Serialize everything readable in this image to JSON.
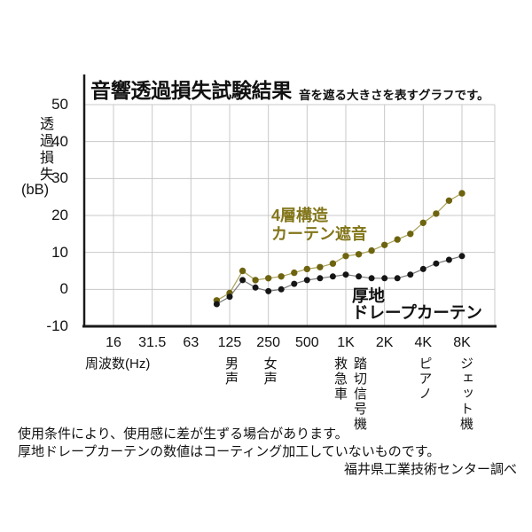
{
  "page": {
    "title": "音響透過損失試験結果",
    "subtitle": "音を遮る大きさを表すグラフです。",
    "notes": [
      "使用条件により、使用感に差が生ずる場合があります。",
      "厚地ドレープカーテンの数値はコーティング加工していないものです。"
    ],
    "source": "福井県工業技術センター調べ"
  },
  "chart_data": {
    "type": "line",
    "title": "音響透過損失試験結果",
    "subtitle": "音を遮る大きさを表すグラフです。",
    "grid": true,
    "legend_position": "inside",
    "x_axis": {
      "label": "周波数(Hz)",
      "scale": "log-octave",
      "ticks": [
        "16",
        "31.5",
        "63",
        "125",
        "250",
        "500",
        "1K",
        "2K",
        "4K",
        "8K"
      ]
    },
    "y_axis": {
      "label": "透過損失",
      "unit": "(bB)",
      "ticks": [
        50,
        40,
        30,
        20,
        10,
        0,
        -10
      ],
      "range": [
        -10,
        50
      ]
    },
    "bands": [
      "100",
      "125",
      "160",
      "200",
      "250",
      "315",
      "400",
      "500",
      "630",
      "800",
      "1K",
      "1.25K",
      "1.6K",
      "2K",
      "2.5K",
      "3.15K",
      "4K",
      "5K",
      "6.3K",
      "8K"
    ],
    "series": [
      {
        "name": "4層構造カーテン遮音",
        "label_lines": [
          "4層構造",
          "カーテン遮音"
        ],
        "dot_color": "#6e6410",
        "line_color": "#aaa158",
        "label_color": "#83761a",
        "values": [
          -3,
          -1,
          5,
          2.5,
          3,
          3.5,
          4.5,
          5.5,
          6,
          7,
          9,
          9.5,
          10.5,
          12,
          13.5,
          15,
          18,
          20.5,
          24,
          26
        ]
      },
      {
        "name": "厚地ドレープカーテン",
        "label_lines": [
          "厚地",
          "ドレープカーテン"
        ],
        "dot_color": "#151515",
        "line_color": "#787878",
        "label_color": "#111111",
        "values": [
          -4,
          -2,
          2.5,
          0.5,
          -0.5,
          0,
          1.5,
          2.5,
          3,
          3.5,
          4,
          3.5,
          3,
          3,
          3,
          4,
          5.5,
          7,
          8,
          9
        ]
      }
    ],
    "sound_markers": [
      {
        "label": "男声",
        "anchor_tick": 3,
        "offset": 0
      },
      {
        "label": "女声",
        "anchor_tick": 4,
        "offset": 0
      },
      {
        "label": "救急車",
        "anchor_tick": 6,
        "offset": -8
      },
      {
        "label": "踏切信号機",
        "anchor_tick": 6,
        "offset": 14
      },
      {
        "label": "ピアノ",
        "anchor_tick": 8,
        "offset": 0
      },
      {
        "label": "ジェット機",
        "anchor_tick": 9,
        "offset": 3
      }
    ],
    "colors": {
      "grid": "#c8c8c8",
      "axis": "#1a1a1a",
      "background": "#ffffff"
    }
  }
}
